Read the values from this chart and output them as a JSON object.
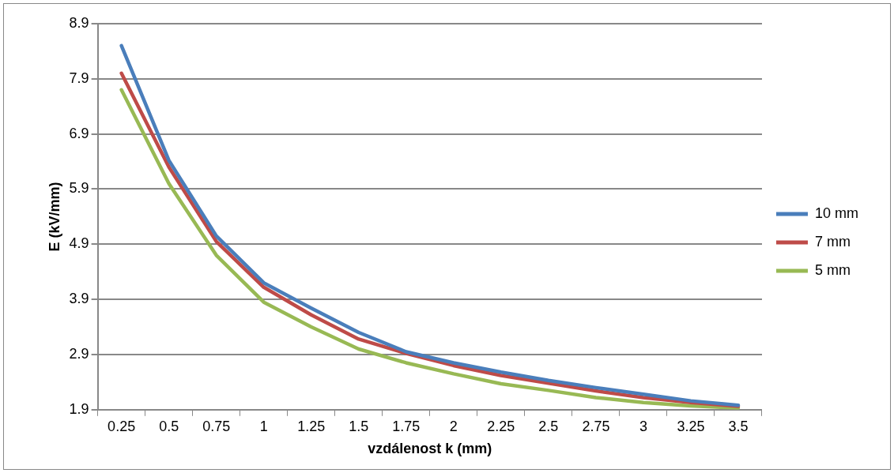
{
  "chart_data": {
    "type": "line",
    "xlabel": "vzdálenost k (mm)",
    "ylabel": "E (kV/mm)",
    "categories": [
      "0.25",
      "0.5",
      "0.75",
      "1",
      "1.25",
      "1.5",
      "1.75",
      "2",
      "2.25",
      "2.5",
      "2.75",
      "3",
      "3.25",
      "3.5"
    ],
    "series": [
      {
        "name": "10 mm",
        "color": "#4a7ebb",
        "values": [
          8.5,
          6.42,
          5.05,
          4.2,
          3.74,
          3.3,
          2.95,
          2.75,
          2.58,
          2.43,
          2.3,
          2.18,
          2.06,
          1.98
        ]
      },
      {
        "name": "7 mm",
        "color": "#be4b48",
        "values": [
          8.0,
          6.3,
          4.95,
          4.12,
          3.62,
          3.18,
          2.92,
          2.7,
          2.52,
          2.38,
          2.24,
          2.12,
          2.03,
          1.96
        ]
      },
      {
        "name": "5 mm",
        "color": "#98b954",
        "values": [
          7.7,
          6.0,
          4.7,
          3.85,
          3.4,
          3.0,
          2.75,
          2.55,
          2.37,
          2.25,
          2.12,
          2.03,
          1.97,
          1.93
        ]
      }
    ],
    "ylim": [
      1.9,
      8.9
    ],
    "yticks": [
      1.9,
      2.9,
      3.9,
      4.9,
      5.9,
      6.9,
      7.9,
      8.9
    ],
    "grid": "y",
    "legend": "right",
    "marker": "none",
    "line_style": "solid"
  }
}
